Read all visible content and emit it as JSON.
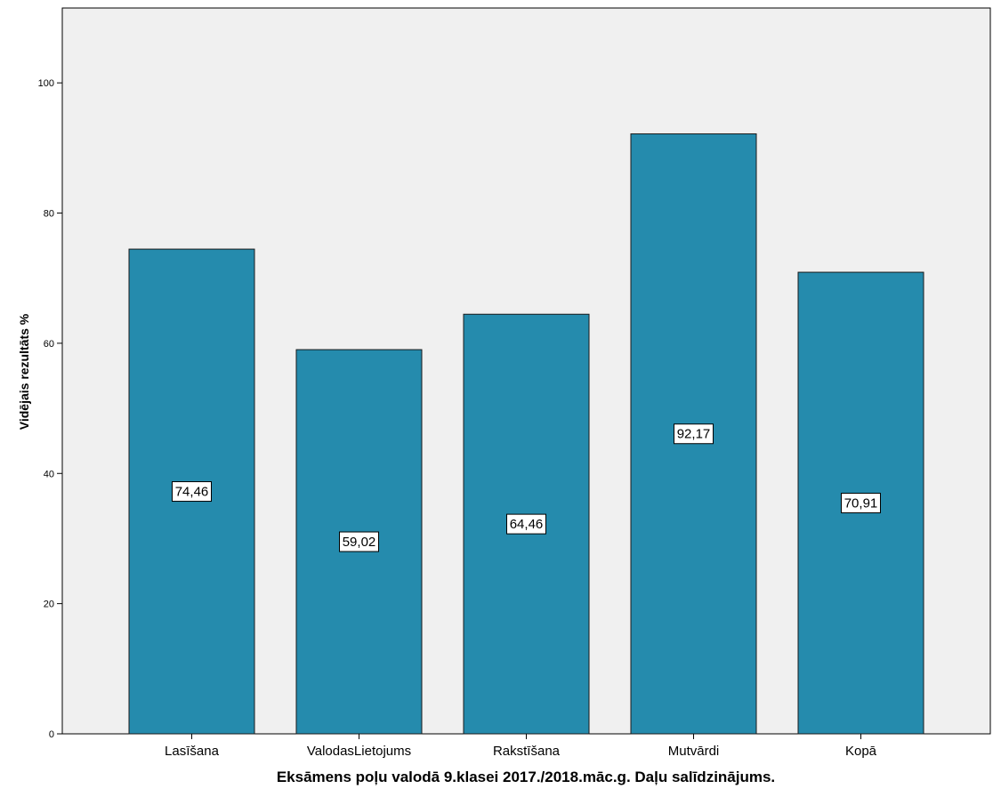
{
  "chart_data": {
    "type": "bar",
    "categories": [
      "Lasīšana",
      "ValodasLietojums",
      "Rakstīšana",
      "Mutvārdi",
      "Kopā"
    ],
    "values": [
      74.46,
      59.02,
      64.46,
      92.17,
      70.91
    ],
    "data_labels": [
      "74,46",
      "59,02",
      "64,46",
      "92,17",
      "70,91"
    ],
    "title": "",
    "xlabel": "Eksāmens poļu valodā 9.klasei 2017./2018.māc.g. Daļu salīdzinājums.",
    "ylabel": "Vidējais rezultāts %",
    "ylim": [
      0,
      111.5
    ],
    "yticks": [
      0,
      20,
      40,
      60,
      80,
      100
    ],
    "grid": false,
    "legend": "none",
    "colors": {
      "bar_fill": "#258bad",
      "bar_stroke": "#1a1a1a",
      "plot_background": "#f0f0f0",
      "label_box_fill": "#ffffff"
    }
  }
}
